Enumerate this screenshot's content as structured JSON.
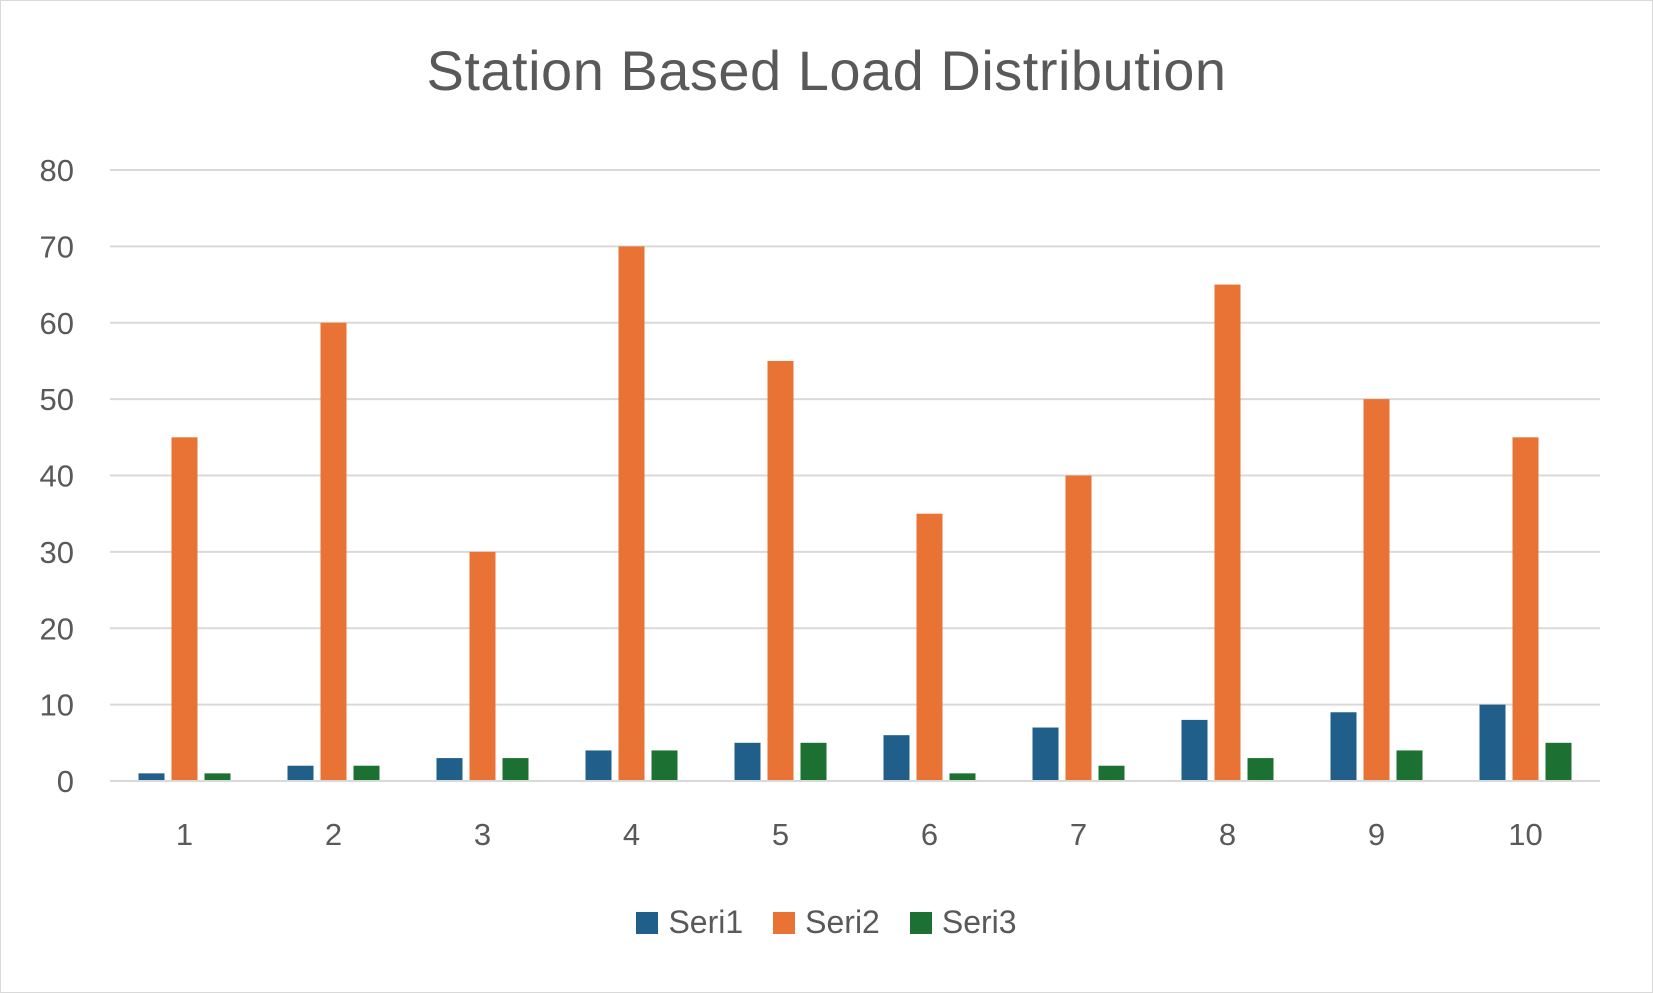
{
  "chart_data": {
    "type": "bar",
    "title": "Station Based Load Distribution",
    "xlabel": "",
    "ylabel": "",
    "categories": [
      "1",
      "2",
      "3",
      "4",
      "5",
      "6",
      "7",
      "8",
      "9",
      "10"
    ],
    "series": [
      {
        "name": "Seri1",
        "color": "#1f5f89",
        "values": [
          1,
          2,
          3,
          4,
          5,
          6,
          7,
          8,
          9,
          10
        ]
      },
      {
        "name": "Seri2",
        "color": "#e97334",
        "values": [
          45,
          60,
          30,
          70,
          55,
          35,
          40,
          65,
          50,
          45
        ]
      },
      {
        "name": "Seri3",
        "color": "#1c7031",
        "values": [
          1,
          2,
          3,
          4,
          5,
          1,
          2,
          3,
          4,
          5
        ]
      }
    ],
    "ylim": [
      0,
      80
    ],
    "yticks": [
      "0",
      "10",
      "20",
      "30",
      "40",
      "50",
      "60",
      "70",
      "80"
    ],
    "grid": true,
    "legend": "bottom"
  }
}
